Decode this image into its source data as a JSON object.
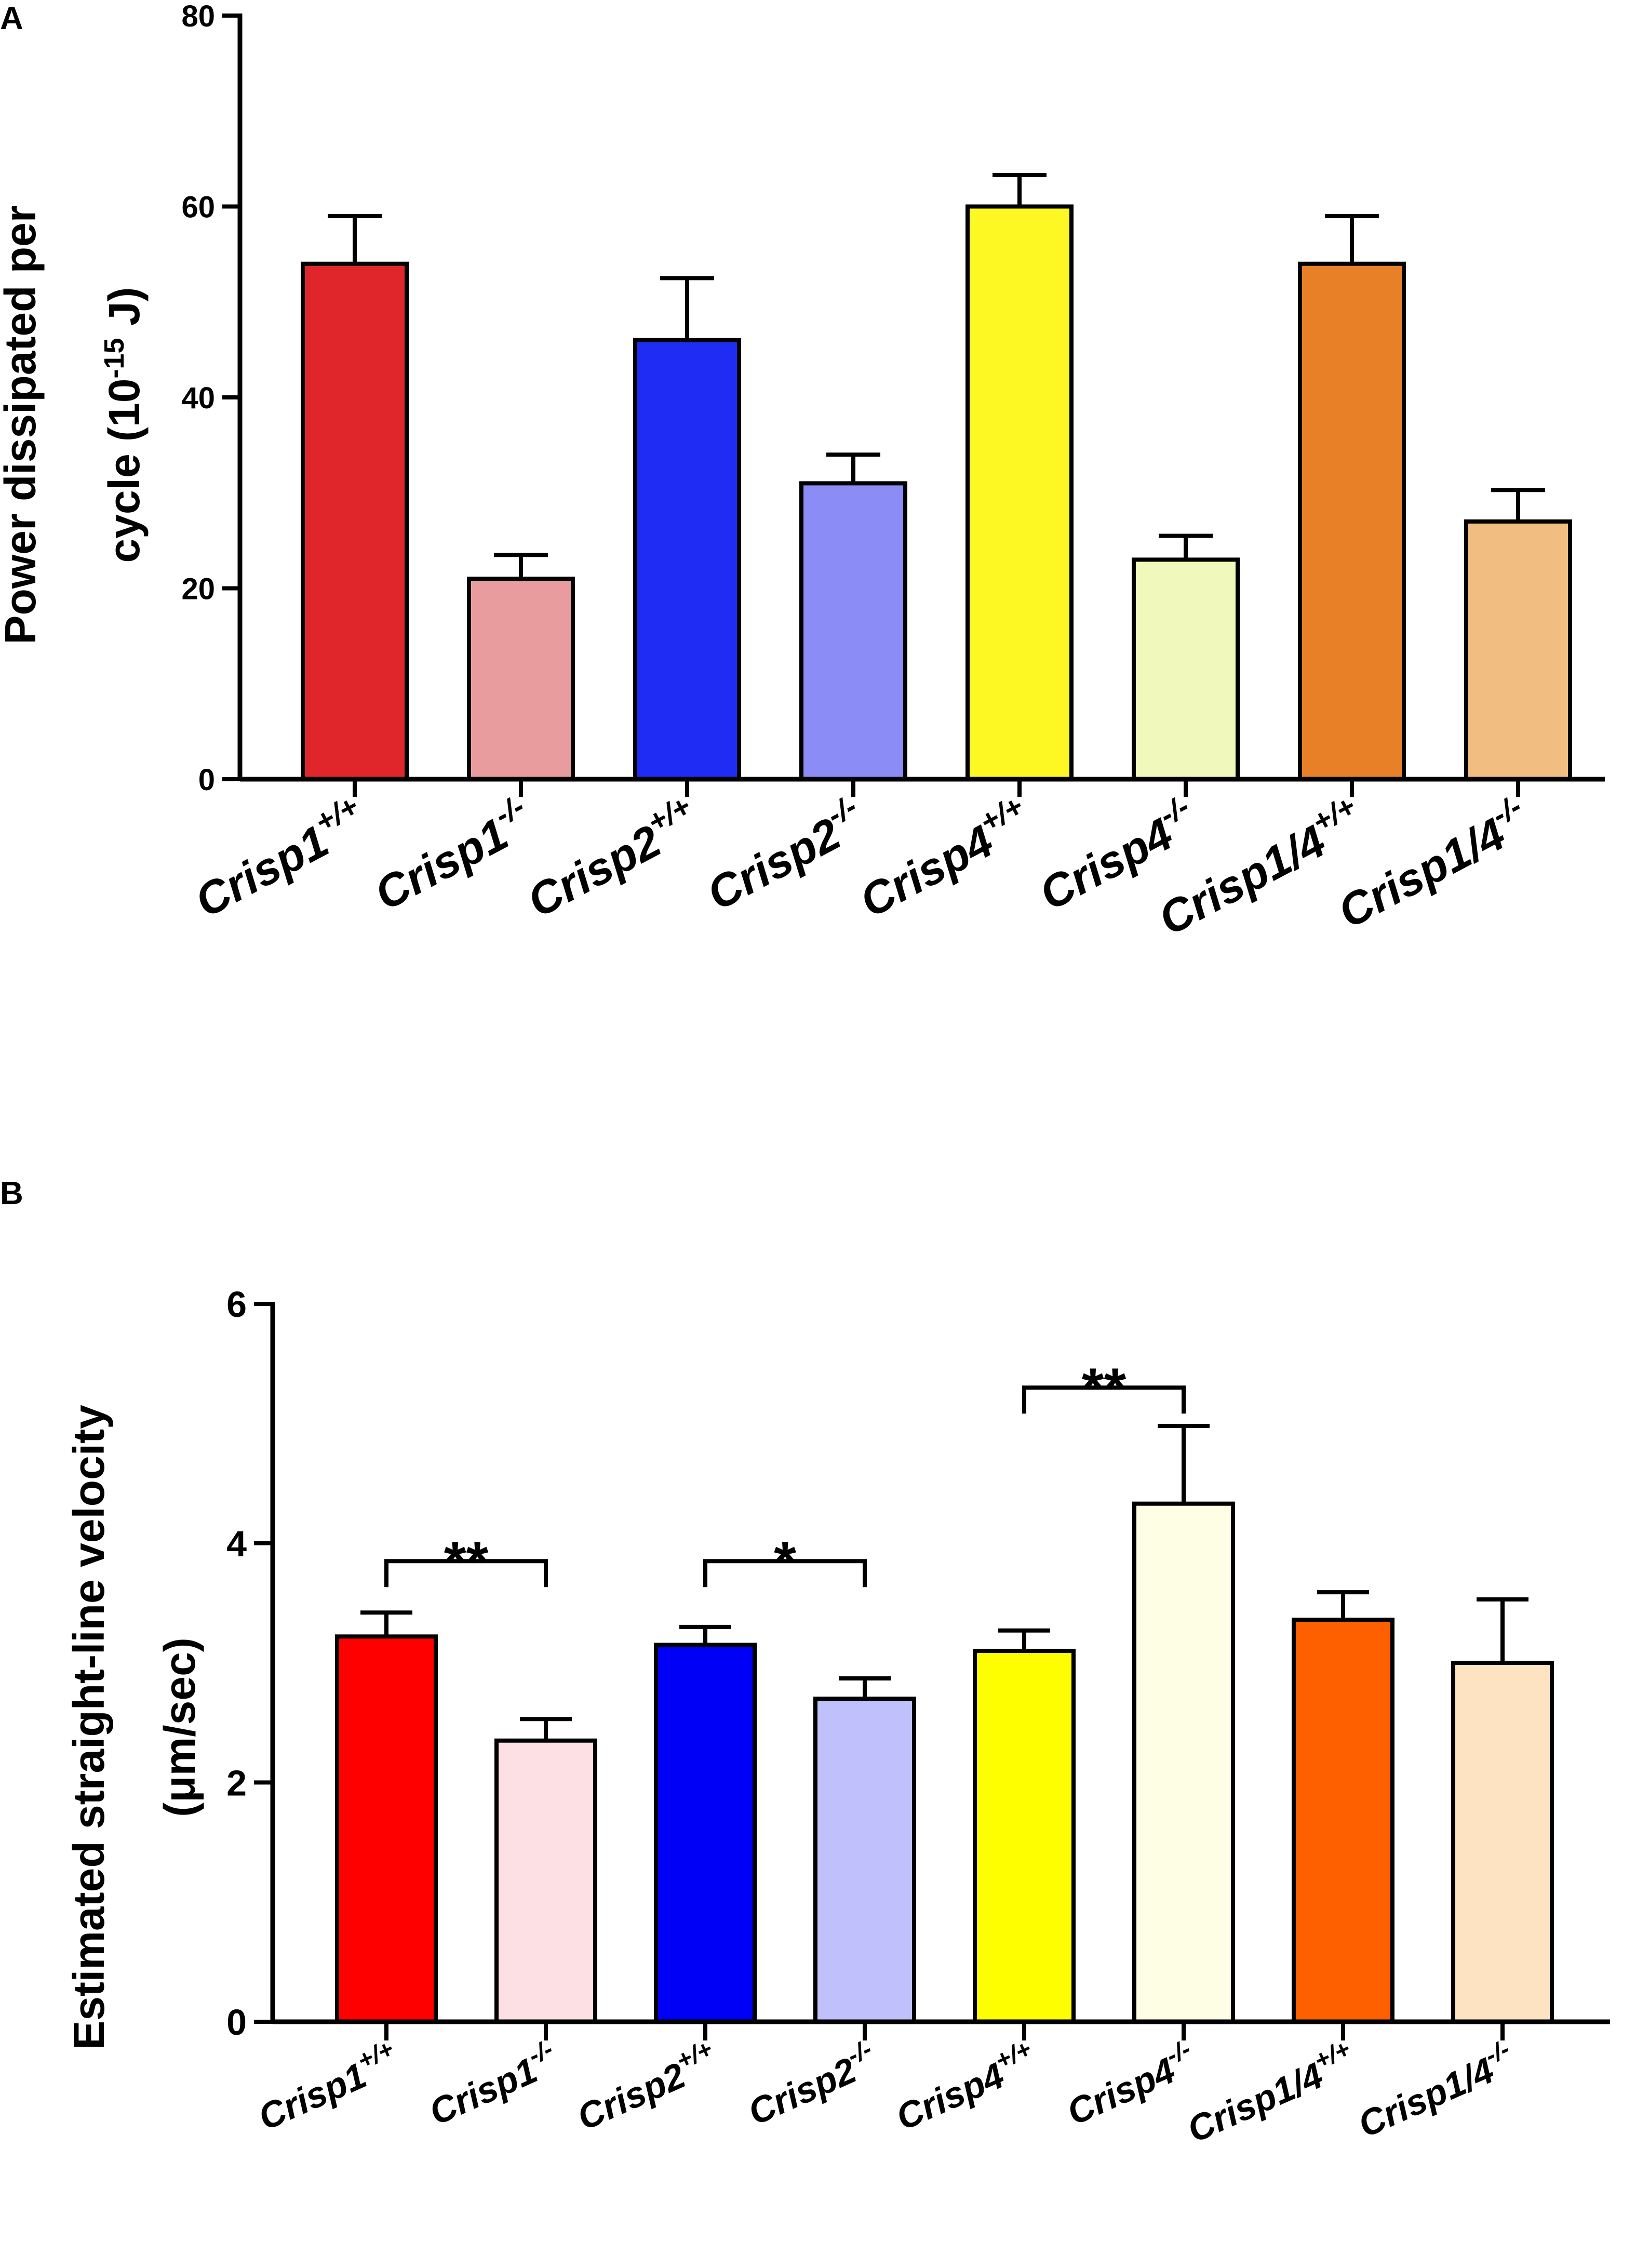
{
  "chart_data": [
    {
      "panel": "A",
      "type": "bar",
      "ylabel_line1": "Power dissipated per",
      "ylabel_line2_prefix": "cycle (10",
      "ylabel_line2_exp": "-15",
      "ylabel_line2_suffix": " J)",
      "xlabel": "",
      "ylim": [
        0,
        80
      ],
      "yticks": [
        0,
        20,
        40,
        60,
        80
      ],
      "categories": [
        {
          "base": "Crisp1",
          "sup": "+/+"
        },
        {
          "base": "Crisp1",
          "sup": "-/-"
        },
        {
          "base": "Crisp2",
          "sup": "+/+"
        },
        {
          "base": "Crisp2",
          "sup": "-/-"
        },
        {
          "base": "Crisp4",
          "sup": "+/+"
        },
        {
          "base": "Crisp4",
          "sup": "-/-"
        },
        {
          "base": "Crisp1/4",
          "sup": "+/+"
        },
        {
          "base": "Crisp1/4",
          "sup": "-/-"
        }
      ],
      "values": [
        54,
        21,
        46,
        31,
        60,
        23,
        54,
        27
      ],
      "errors": [
        5,
        2.5,
        6.5,
        3,
        3.3,
        2.5,
        5,
        3.3
      ],
      "colors": [
        "#e0262b",
        "#e99c9e",
        "#1f2cf3",
        "#8c8cf7",
        "#fdf824",
        "#f0f8bc",
        "#e88028",
        "#f2bd80"
      ],
      "significance": []
    },
    {
      "panel": "B",
      "type": "bar",
      "ylabel_line1": "Estimated straight-line velocity",
      "ylabel_line2": "(μm/sec)",
      "xlabel": "",
      "ylim": [
        0,
        6
      ],
      "yticks": [
        0,
        2,
        4,
        6
      ],
      "categories": [
        {
          "base": "Crisp1",
          "sup": "+/+"
        },
        {
          "base": "Crisp1",
          "sup": "-/-"
        },
        {
          "base": "Crisp2",
          "sup": "+/+"
        },
        {
          "base": "Crisp2",
          "sup": "-/-"
        },
        {
          "base": "Crisp4",
          "sup": "+/+"
        },
        {
          "base": "Crisp4",
          "sup": "-/-"
        },
        {
          "base": "Crisp1/4",
          "sup": "+/+"
        },
        {
          "base": "Crisp1/4",
          "sup": "-/-"
        }
      ],
      "values": [
        3.22,
        2.35,
        3.15,
        2.7,
        3.1,
        4.33,
        3.36,
        3.0
      ],
      "errors": [
        0.2,
        0.18,
        0.15,
        0.17,
        0.17,
        0.65,
        0.23,
        0.53
      ],
      "colors": [
        "#fe0000",
        "#fde0e3",
        "#0000f6",
        "#c0c0fd",
        "#fefe00",
        "#fefee4",
        "#fe6000",
        "#fde3c1"
      ],
      "significance": [
        {
          "from": 0,
          "to": 1,
          "label": "**",
          "y": 3.85
        },
        {
          "from": 2,
          "to": 3,
          "label": "*",
          "y": 3.85
        },
        {
          "from": 4,
          "to": 5,
          "label": "**",
          "y": 5.3
        }
      ]
    }
  ]
}
